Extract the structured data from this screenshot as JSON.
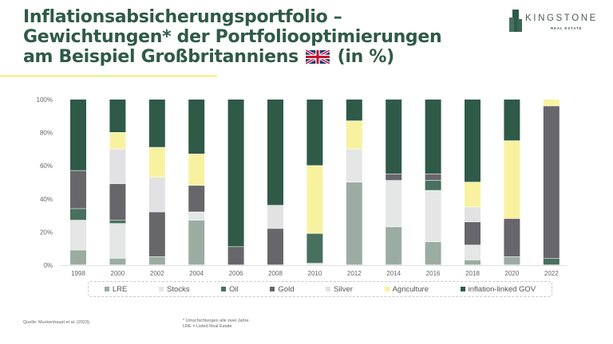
{
  "header": {
    "title_lines": [
      "Inflationsabsicherungsportfolio –",
      "Gewichtungen* der Portfoliooptimierungen",
      "am Beispiel Großbritanniens"
    ],
    "title_suffix": "(in %)",
    "flag": "uk-flag-icon"
  },
  "logo": {
    "name": "KINGSTONE",
    "subtitle": "REAL ESTATE",
    "icon": "building-icon"
  },
  "colors": {
    "title": "#2f5a48",
    "accent": "#f6f0a8"
  },
  "chart_data": {
    "type": "bar",
    "stacked": true,
    "title": "",
    "xlabel": "",
    "ylabel": "",
    "ylim": [
      0,
      100
    ],
    "yticks": [
      "0%",
      "20%",
      "40%",
      "60%",
      "80%",
      "100%"
    ],
    "grid": false,
    "legend_position": "bottom",
    "categories": [
      "1998",
      "2000",
      "2002",
      "2004",
      "2006",
      "2008",
      "2010",
      "2012",
      "2014",
      "2016",
      "2018",
      "2020",
      "2022"
    ],
    "series": [
      {
        "name": "LRE",
        "color": "#9bada3",
        "values": [
          9,
          4,
          5,
          27,
          0,
          0,
          0,
          50,
          23,
          14,
          3,
          5,
          0
        ]
      },
      {
        "name": "Stocks",
        "color": "#e4e7e5",
        "values": [
          18,
          21,
          0,
          5,
          0,
          0,
          1,
          20,
          28,
          31,
          9,
          0,
          0
        ]
      },
      {
        "name": "Oil",
        "color": "#47705f",
        "values": [
          7,
          2,
          0,
          0,
          0,
          0,
          18,
          0,
          0,
          6,
          0,
          0,
          4
        ]
      },
      {
        "name": "Gold",
        "color": "#67666b",
        "values": [
          23,
          22,
          27,
          16,
          11,
          22,
          0,
          0,
          4,
          4,
          14,
          23,
          92
        ]
      },
      {
        "name": "Silver",
        "color": "#e2e1e3",
        "values": [
          0,
          21,
          21,
          0,
          0,
          14,
          0,
          0,
          0,
          0,
          9,
          0,
          0
        ]
      },
      {
        "name": "Agriculture",
        "color": "#f8f2a0",
        "values": [
          0,
          10,
          18,
          19,
          0,
          0,
          41,
          17,
          0,
          0,
          15,
          47,
          4
        ]
      },
      {
        "name": "inflation-linked GOV",
        "color": "#2f5a48",
        "values": [
          43,
          20,
          29,
          33,
          89,
          64,
          40,
          13,
          45,
          45,
          50,
          25,
          0
        ]
      }
    ]
  },
  "footer": {
    "source": "Quelle: Muckenhaupt et al. (2023).",
    "note_lines": [
      "* Umschichtungen alle zwei Jahre.",
      "LRE = Listed Real Estate"
    ]
  }
}
